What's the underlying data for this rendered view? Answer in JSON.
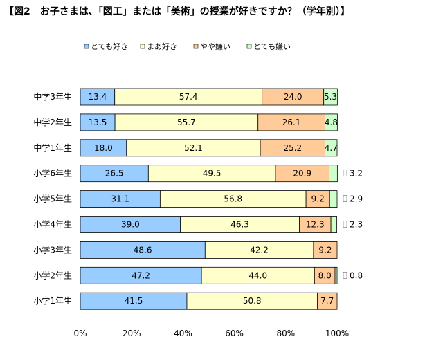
{
  "chart_data": {
    "type": "bar",
    "orientation": "horizontal",
    "stacked": true,
    "percent": true,
    "title": "【図2　お子さまは、「図工」または「美術」の授業が好きですか？（学年別）】",
    "categories": [
      "中学3年生",
      "中学2年生",
      "中学1年生",
      "小学6年生",
      "小学5年生",
      "小学4年生",
      "小学3年生",
      "小学2年生",
      "小学1年生"
    ],
    "series": [
      {
        "name": "とても好き",
        "color": "#99CCFF",
        "values": [
          13.4,
          13.5,
          18.0,
          26.5,
          31.1,
          39.0,
          48.6,
          47.2,
          41.5
        ]
      },
      {
        "name": "まあ好き",
        "color": "#FFFFCC",
        "values": [
          57.4,
          55.7,
          52.1,
          49.5,
          56.8,
          46.3,
          42.2,
          44.0,
          50.8
        ]
      },
      {
        "name": "やや嫌い",
        "color": "#FFCC99",
        "values": [
          24.0,
          26.1,
          25.2,
          20.9,
          9.2,
          12.3,
          9.2,
          8.0,
          7.7
        ]
      },
      {
        "name": "とても嫌い",
        "color": "#CCFFCC",
        "values": [
          5.3,
          4.8,
          4.7,
          3.2,
          2.9,
          2.3,
          null,
          0.8,
          null
        ]
      }
    ],
    "xlim": [
      0,
      100
    ],
    "xticks": [
      "0%",
      "20%",
      "40%",
      "60%",
      "80%",
      "100%"
    ],
    "legend_position": "top",
    "grid": false
  }
}
